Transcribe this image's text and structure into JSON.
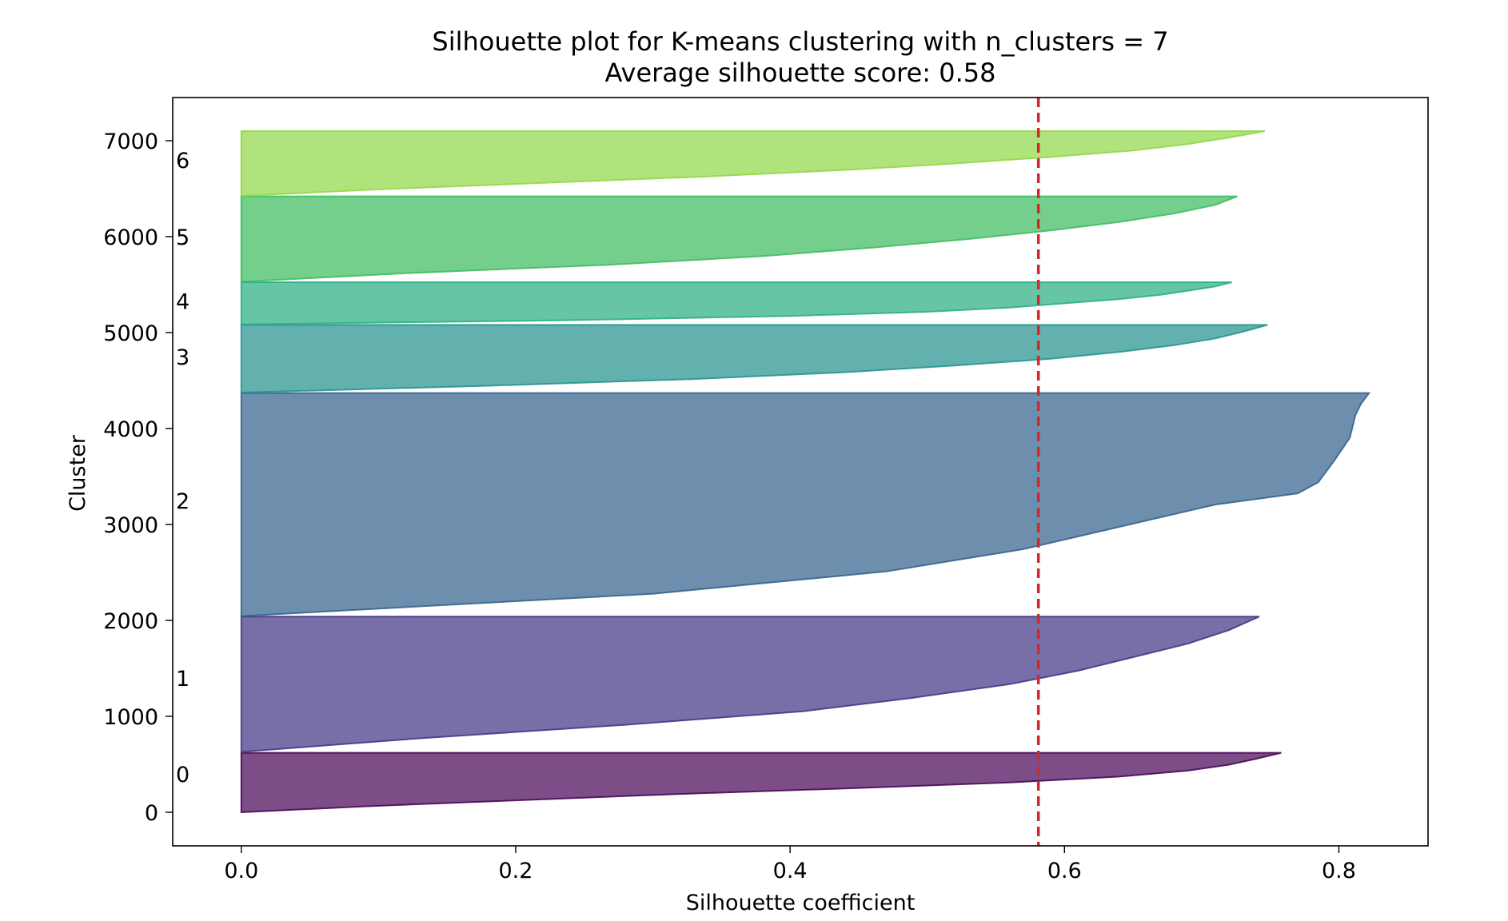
{
  "chart_data": {
    "type": "area",
    "title": "Silhouette plot for K-means clustering with n_clusters = 7",
    "subtitle": "Average silhouette score: 0.58",
    "xlabel": "Silhouette coefficient",
    "ylabel": "Cluster",
    "xlim": [
      -0.05,
      0.865
    ],
    "ylim": [
      -350,
      7450
    ],
    "xticks": [
      0.0,
      0.2,
      0.4,
      0.6,
      0.8
    ],
    "xtick_labels": [
      "0.0",
      "0.2",
      "0.4",
      "0.6",
      "0.8"
    ],
    "yticks": [
      0,
      1000,
      2000,
      3000,
      4000,
      5000,
      6000,
      7000
    ],
    "ytick_labels": [
      "0",
      "1000",
      "2000",
      "3000",
      "4000",
      "5000",
      "6000",
      "7000"
    ],
    "average_score": 0.581,
    "average_line_color": "#d62728",
    "grid": false,
    "clusters": [
      {
        "label": "0",
        "color": "#440154",
        "y_start": 0,
        "y_end": 620,
        "label_y": 400,
        "profile": [
          [
            0,
            0.0
          ],
          [
            0.1,
            0.09
          ],
          [
            0.2,
            0.2
          ],
          [
            0.3,
            0.31
          ],
          [
            0.4,
            0.44
          ],
          [
            0.5,
            0.56
          ],
          [
            0.6,
            0.64
          ],
          [
            0.7,
            0.69
          ],
          [
            0.8,
            0.72
          ],
          [
            0.9,
            0.74
          ],
          [
            1.0,
            0.758
          ]
        ]
      },
      {
        "label": "1",
        "color": "#3e3285",
        "y_start": 630,
        "y_end": 2040,
        "label_y": 1400,
        "profile": [
          [
            0,
            0.0
          ],
          [
            0.1,
            0.13
          ],
          [
            0.2,
            0.28
          ],
          [
            0.3,
            0.41
          ],
          [
            0.4,
            0.49
          ],
          [
            0.5,
            0.56
          ],
          [
            0.6,
            0.61
          ],
          [
            0.7,
            0.65
          ],
          [
            0.8,
            0.69
          ],
          [
            0.9,
            0.72
          ],
          [
            1.0,
            0.742
          ]
        ]
      },
      {
        "label": "2",
        "color": "#2f5f8a",
        "y_start": 2045,
        "y_end": 4370,
        "label_y": 3250,
        "profile": [
          [
            0,
            0.0
          ],
          [
            0.1,
            0.3
          ],
          [
            0.2,
            0.47
          ],
          [
            0.3,
            0.57
          ],
          [
            0.4,
            0.64
          ],
          [
            0.5,
            0.71
          ],
          [
            0.55,
            0.77
          ],
          [
            0.6,
            0.785
          ],
          [
            0.7,
            0.797
          ],
          [
            0.8,
            0.808
          ],
          [
            0.9,
            0.812
          ],
          [
            0.95,
            0.816
          ],
          [
            1.0,
            0.822
          ]
        ]
      },
      {
        "label": "3",
        "color": "#21908c",
        "y_start": 4375,
        "y_end": 5080,
        "label_y": 4750,
        "profile": [
          [
            0,
            0.0
          ],
          [
            0.1,
            0.18
          ],
          [
            0.2,
            0.33
          ],
          [
            0.3,
            0.44
          ],
          [
            0.4,
            0.52
          ],
          [
            0.5,
            0.59
          ],
          [
            0.6,
            0.64
          ],
          [
            0.7,
            0.68
          ],
          [
            0.8,
            0.71
          ],
          [
            0.9,
            0.73
          ],
          [
            1.0,
            0.748
          ]
        ]
      },
      {
        "label": "4",
        "color": "#27ad81",
        "y_start": 5085,
        "y_end": 5525,
        "label_y": 5330,
        "profile": [
          [
            0,
            0.0
          ],
          [
            0.1,
            0.24
          ],
          [
            0.2,
            0.4
          ],
          [
            0.3,
            0.5
          ],
          [
            0.4,
            0.56
          ],
          [
            0.5,
            0.6
          ],
          [
            0.6,
            0.64
          ],
          [
            0.7,
            0.67
          ],
          [
            0.8,
            0.69
          ],
          [
            0.9,
            0.71
          ],
          [
            1.0,
            0.722
          ]
        ]
      },
      {
        "label": "5",
        "color": "#3bbb5b",
        "y_start": 5530,
        "y_end": 6420,
        "label_y": 6000,
        "profile": [
          [
            0,
            0.0
          ],
          [
            0.1,
            0.12
          ],
          [
            0.2,
            0.27
          ],
          [
            0.3,
            0.38
          ],
          [
            0.4,
            0.46
          ],
          [
            0.5,
            0.53
          ],
          [
            0.6,
            0.59
          ],
          [
            0.7,
            0.64
          ],
          [
            0.8,
            0.68
          ],
          [
            0.9,
            0.71
          ],
          [
            1.0,
            0.726
          ]
        ]
      },
      {
        "label": "6",
        "color": "#8fd744",
        "y_start": 6425,
        "y_end": 7100,
        "label_y": 6800,
        "profile": [
          [
            0,
            0.0
          ],
          [
            0.1,
            0.1
          ],
          [
            0.2,
            0.22
          ],
          [
            0.3,
            0.34
          ],
          [
            0.4,
            0.44
          ],
          [
            0.5,
            0.52
          ],
          [
            0.6,
            0.59
          ],
          [
            0.7,
            0.65
          ],
          [
            0.8,
            0.69
          ],
          [
            0.9,
            0.72
          ],
          [
            1.0,
            0.746
          ]
        ]
      }
    ]
  }
}
